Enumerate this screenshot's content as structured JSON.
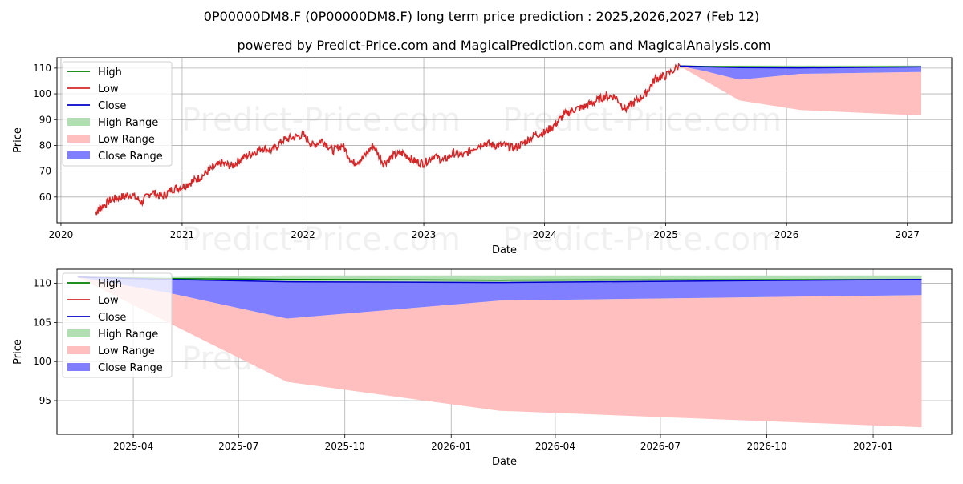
{
  "title_line1": "0P00000DM8.F (0P00000DM8.F) long term price prediction : 2025,2026,2027 (Feb 12)",
  "title_line2": "powered by Predict-Price.com and MagicalPrediction.com and MagicalAnalysis.com",
  "watermark": "Predict-Price.com",
  "colors": {
    "high": "#008000",
    "low": "#d62728",
    "close": "#0000cc",
    "high_range": "#b2dfb2",
    "low_range": "#ffbfbf",
    "close_range": "#7f7fff",
    "grid": "#b0b0b0"
  },
  "legend_labels": [
    "High",
    "Low",
    "Close",
    "High Range",
    "Low Range",
    "Close Range"
  ],
  "chart_data": [
    {
      "type": "line",
      "xlabel": "Date",
      "ylabel": "Price",
      "xlim": [
        "2019-12-20",
        "2027-05-15"
      ],
      "ylim": [
        50,
        114
      ],
      "xticks": [
        "2020",
        "2021",
        "2022",
        "2023",
        "2024",
        "2025",
        "2026",
        "2027"
      ],
      "yticks": [
        60,
        70,
        80,
        90,
        100,
        110
      ],
      "grid": true,
      "legend_position": "top-left",
      "history_low": {
        "x": [
          "2020-04-15",
          "2020-05-01",
          "2020-06-01",
          "2020-07-01",
          "2020-08-01",
          "2020-09-01",
          "2020-10-01",
          "2020-11-01",
          "2020-12-01",
          "2021-01-01",
          "2021-02-01",
          "2021-03-01",
          "2021-04-01",
          "2021-05-01",
          "2021-06-01",
          "2021-07-01",
          "2021-08-01",
          "2021-09-01",
          "2021-10-01",
          "2021-11-01",
          "2021-12-01",
          "2022-01-01",
          "2022-02-01",
          "2022-03-01",
          "2022-04-01",
          "2022-05-01",
          "2022-06-01",
          "2022-07-01",
          "2022-08-01",
          "2022-09-01",
          "2022-10-01",
          "2022-11-01",
          "2022-12-01",
          "2023-01-01",
          "2023-02-01",
          "2023-03-01",
          "2023-04-01",
          "2023-05-01",
          "2023-06-01",
          "2023-07-01",
          "2023-08-01",
          "2023-09-01",
          "2023-10-01",
          "2023-11-01",
          "2023-12-01",
          "2024-01-01",
          "2024-02-01",
          "2024-03-01",
          "2024-04-01",
          "2024-05-01",
          "2024-06-01",
          "2024-07-01",
          "2024-08-01",
          "2024-09-01",
          "2024-10-01",
          "2024-11-01",
          "2024-12-01",
          "2025-01-01",
          "2025-02-12"
        ],
        "y": [
          54,
          56,
          59,
          60,
          61,
          58,
          62,
          60,
          63,
          64,
          66,
          68,
          71,
          73,
          72,
          75,
          77,
          79,
          78,
          82,
          83,
          84,
          80,
          82,
          78,
          80,
          73,
          75,
          80,
          73,
          76,
          77,
          74,
          73,
          76,
          74,
          77,
          76,
          79,
          81,
          80,
          80,
          79,
          81,
          84,
          85,
          88,
          92,
          94,
          95,
          97,
          99,
          99,
          94,
          97,
          100,
          106,
          107,
          111
        ]
      },
      "forecast_dates": [
        "2025-02-12",
        "2025-05-01",
        "2025-08-12",
        "2026-02-12",
        "2027-02-12"
      ],
      "high": {
        "values": [
          110.8,
          110.6,
          110.5,
          110.4,
          110.5
        ]
      },
      "low": {
        "values": [
          110.8,
          105.0,
          97.4,
          93.7,
          91.6
        ]
      },
      "close": {
        "values": [
          110.8,
          110.5,
          110.2,
          110.1,
          110.5
        ]
      },
      "high_range": {
        "upper": [
          110.8,
          110.8,
          111.0,
          111.0,
          111.0
        ],
        "lower": [
          110.8,
          110.5,
          110.2,
          110.1,
          110.5
        ]
      },
      "low_range": {
        "upper": [
          110.8,
          108.8,
          105.5,
          107.8,
          108.5
        ],
        "lower": [
          110.8,
          105.0,
          97.4,
          93.7,
          91.6
        ]
      },
      "close_range": {
        "upper": [
          110.8,
          110.5,
          110.2,
          110.1,
          110.5
        ],
        "lower": [
          110.8,
          108.8,
          105.5,
          107.8,
          108.5
        ]
      }
    },
    {
      "type": "area",
      "xlabel": "Date",
      "ylabel": "Price",
      "xlim": [
        "2025-01-25",
        "2027-03-10"
      ],
      "ylim": [
        90.7,
        111.8
      ],
      "xticks": [
        "2025-04",
        "2025-07",
        "2025-10",
        "2026-01",
        "2026-04",
        "2026-07",
        "2026-10",
        "2027-01"
      ],
      "yticks": [
        95,
        100,
        105,
        110
      ],
      "grid": true,
      "legend_position": "top-left",
      "forecast_dates": [
        "2025-02-12",
        "2025-05-01",
        "2025-08-12",
        "2026-02-12",
        "2027-02-12"
      ],
      "high": {
        "values": [
          110.8,
          110.6,
          110.5,
          110.4,
          110.5
        ]
      },
      "low": {
        "values": [
          110.8,
          105.0,
          97.4,
          93.7,
          91.6
        ]
      },
      "close": {
        "values": [
          110.8,
          110.5,
          110.2,
          110.1,
          110.5
        ]
      },
      "high_range": {
        "upper": [
          110.8,
          110.8,
          111.0,
          111.0,
          111.0
        ],
        "lower": [
          110.8,
          110.5,
          110.2,
          110.1,
          110.5
        ]
      },
      "low_range": {
        "upper": [
          110.8,
          108.8,
          105.5,
          107.8,
          108.5
        ],
        "lower": [
          110.8,
          105.0,
          97.4,
          93.7,
          91.6
        ]
      },
      "close_range": {
        "upper": [
          110.8,
          110.5,
          110.2,
          110.1,
          110.5
        ],
        "lower": [
          110.8,
          108.8,
          105.5,
          107.8,
          108.5
        ]
      }
    }
  ]
}
